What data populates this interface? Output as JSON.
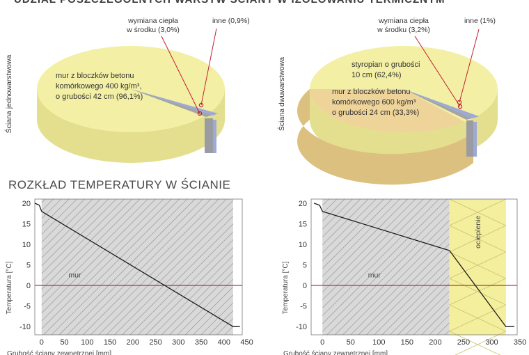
{
  "header": {
    "title": "UDZIAŁ POSZCZEGÓLNYCH WARSTW ŚCIANY W IZOLOWANIU TERMICZNYM",
    "temperature_title": "ROZKŁAD TEMPERATURY W ŚCIANIE"
  },
  "colors": {
    "yellow_top": "#f3f0a5",
    "yellow_side": "#e3df8f",
    "tan_top": "#efd49a",
    "tan_side": "#dcc07f",
    "grey": "#9a9ca1",
    "blue": "#9fa9d6",
    "line_red": "#c0202e",
    "hatch_bg": "#d9d9d9",
    "insulation": "#f4ef9c"
  },
  "chart_data": [
    {
      "type": "pie",
      "title": "Ściana jednowarstwowa",
      "slices": [
        {
          "label": "mur z bloczków betonu komórkowego 400 kg/m³, o grubości 42 cm (96,1%)",
          "value": 96.1
        },
        {
          "label": "wymiana ciepła w środku (3,0%)",
          "value": 3.0
        },
        {
          "label": "inne (0,9%)",
          "value": 0.9
        }
      ],
      "labels": {
        "main_lines": [
          "mur z bloczków betonu",
          "komórkowego 400 kg/m³,",
          "o grubości 42 cm (96,1%)"
        ],
        "exchange_lines": [
          "wymiana ciepła",
          "w środku (3,0%)"
        ],
        "other": "inne (0,9%)"
      }
    },
    {
      "type": "pie",
      "title": "Ściana dwuwarstwowa",
      "slices": [
        {
          "label": "styropian o grubości 10 cm (62,4%)",
          "value": 62.4
        },
        {
          "label": "mur z bloczków betonu komórkowego 600 kg/m³ o grubości 24 cm (33,3%)",
          "value": 33.3
        },
        {
          "label": "wymiana ciepła w środku (3,2%)",
          "value": 3.2
        },
        {
          "label": "inne (1%)",
          "value": 1.0
        }
      ],
      "labels": {
        "styro_lines": [
          "styropian o grubości",
          "10 cm (62,4%)"
        ],
        "mur_lines": [
          "mur z bloczków betonu",
          "komórkowego 600 kg/m³",
          "o grubości 24 cm (33,3%)"
        ],
        "exchange_lines": [
          "wymiana ciepła",
          "w środku (3,2%)"
        ],
        "other": "inne (1%)"
      }
    },
    {
      "type": "line",
      "title": "",
      "xlabel": "Grubość ściany zewnętrznej [mm]",
      "ylabel": "Temperatura [°C]",
      "xlim": [
        -15,
        440
      ],
      "ylim": [
        -12,
        21
      ],
      "xticks": [
        0,
        50,
        100,
        150,
        200,
        250,
        300,
        350,
        400,
        450
      ],
      "yticks": [
        20,
        15,
        10,
        5,
        0,
        -5,
        -10
      ],
      "layers": [
        {
          "name": "mur",
          "from": 0,
          "to": 420
        }
      ],
      "zero_line": 0,
      "series": [
        {
          "name": "temperatura",
          "x": [
            -15,
            -5,
            0,
            420,
            435
          ],
          "y": [
            20,
            19.5,
            18,
            -10,
            -10
          ]
        }
      ]
    },
    {
      "type": "line",
      "title": "",
      "xlabel": "Grubość ściany zewnętrznej [mm]",
      "ylabel": "Temperatura [°C]",
      "xlim": [
        -20,
        345
      ],
      "ylim": [
        -12,
        21
      ],
      "xticks": [
        0,
        50,
        100,
        150,
        200,
        250,
        300,
        350
      ],
      "yticks": [
        20,
        15,
        10,
        5,
        0,
        -5,
        -10
      ],
      "layers": [
        {
          "name": "mur",
          "from": 0,
          "to": 225
        },
        {
          "name": "ocieplenie",
          "from": 225,
          "to": 325
        }
      ],
      "zero_line": 0,
      "series": [
        {
          "name": "temperatura",
          "x": [
            -15,
            -5,
            0,
            225,
            325,
            340
          ],
          "y": [
            20,
            19.5,
            18,
            8.5,
            -10,
            -10
          ]
        }
      ]
    }
  ]
}
